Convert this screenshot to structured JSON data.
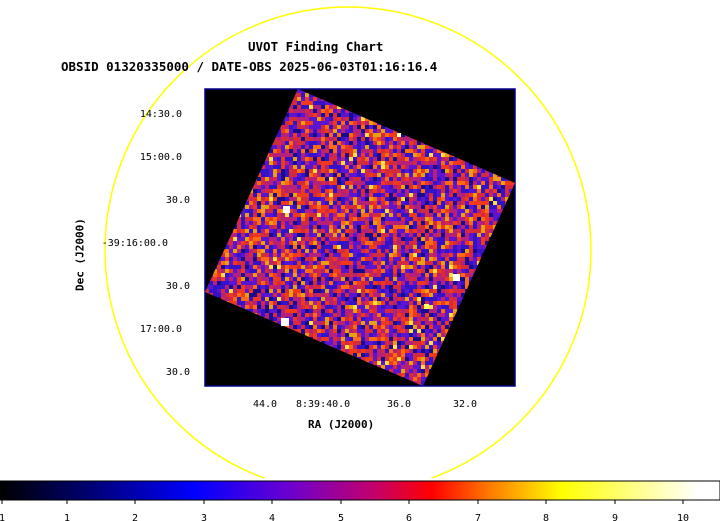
{
  "chart_data": {
    "type": "heatmap",
    "title": "UVOT Finding Chart",
    "subtitle": "OBSID 01320335000 / DATE-OBS 2025-06-03T01:16:16.4",
    "xlabel": "RA (J2000)",
    "ylabel": "Dec (J2000)",
    "x_ticks": [
      "44.0",
      "8:39:40.0",
      "36.0",
      "32.0"
    ],
    "y_ticks": [
      "14:30.0",
      "15:00.0",
      "30.0",
      "-39:16:00.0",
      "30.0",
      "17:00.0",
      "30.0"
    ],
    "colorbar_ticks": [
      "1",
      "1",
      "2",
      "3",
      "4",
      "5",
      "6",
      "7",
      "8",
      "9",
      "10"
    ],
    "colormap": [
      "#000000",
      "#00006e",
      "#0000ff",
      "#6a00d0",
      "#c4006a",
      "#ff0000",
      "#ff7a00",
      "#ffff00",
      "#ffffff"
    ],
    "overlay_color": "#ffff00",
    "frame_color": "#00008b"
  }
}
